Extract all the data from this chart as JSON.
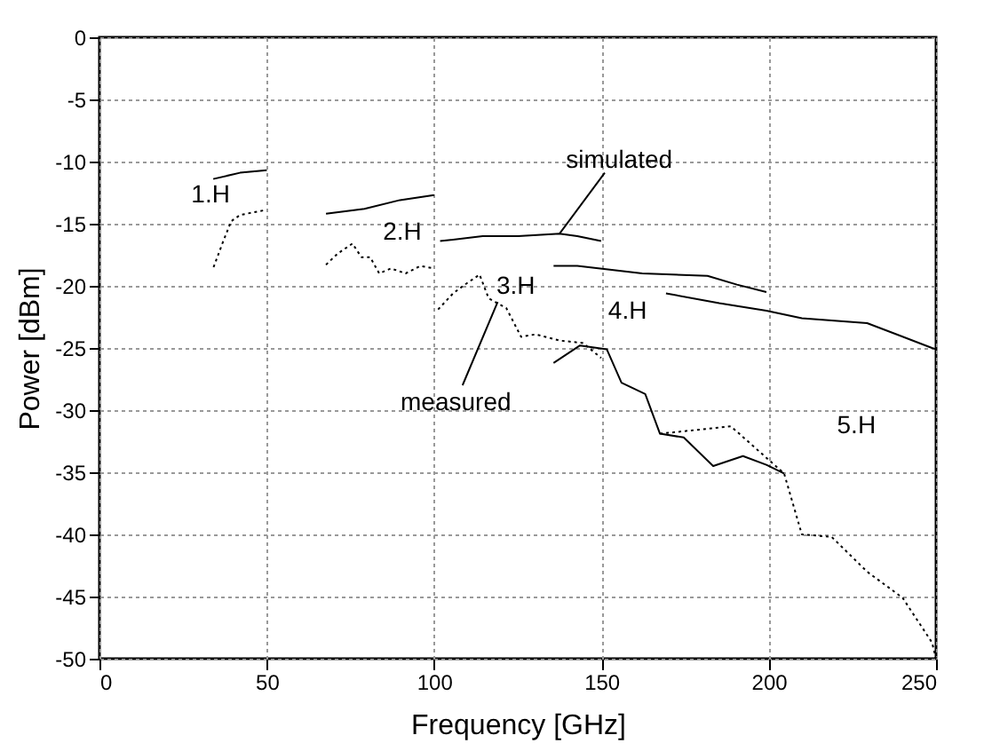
{
  "chart_data": {
    "type": "line",
    "xlabel": "Frequency [GHz]",
    "ylabel": "Power [dBm]",
    "xlim": [
      0,
      250
    ],
    "ylim": [
      -50,
      0
    ],
    "xticks": [
      0,
      50,
      100,
      150,
      200,
      250
    ],
    "yticks": [
      -50,
      -45,
      -40,
      -35,
      -30,
      -25,
      -20,
      -15,
      -10,
      -5,
      0
    ],
    "grid": true,
    "series": [
      {
        "color": "#000000",
        "line_style": "solid",
        "x": [
          34,
          42,
          50
        ],
        "values": [
          -11.4,
          -10.9,
          -10.7
        ]
      },
      {
        "color": "#000000",
        "line_style": "dotted",
        "x": [
          34.1,
          37,
          39.4,
          42,
          49.6
        ],
        "values": [
          -18.5,
          -16.4,
          -14.8,
          -14.3,
          -13.9
        ]
      },
      {
        "color": "#000000",
        "line_style": "solid",
        "x": [
          67.7,
          79.2,
          89.8,
          100
        ],
        "values": [
          -14.2,
          -13.8,
          -13.1,
          -12.7
        ]
      },
      {
        "color": "#000000",
        "line_style": "dotted",
        "x": [
          67.7,
          71.2,
          75.6,
          78.3,
          80.9,
          83.6,
          87.1,
          91.5,
          95.9,
          100
        ],
        "values": [
          -18.3,
          -17.4,
          -16.6,
          -17.7,
          -17.7,
          -19.0,
          -18.6,
          -19.0,
          -18.4,
          -18.6
        ]
      },
      {
        "color": "#000000",
        "line_style": "solid",
        "x": [
          101.8,
          114.5,
          125.1,
          137.5,
          142.8,
          149.9
        ],
        "values": [
          -16.4,
          -16.0,
          -16.0,
          -15.8,
          -16.0,
          -16.4
        ]
      },
      {
        "color": "#000000",
        "line_style": "dotted",
        "x": [
          101.2,
          105.7,
          109.2,
          113.6,
          116.3,
          121.6,
          126,
          130.4,
          137.5,
          144.5,
          149.9
        ],
        "values": [
          -21.9,
          -20.6,
          -19.9,
          -19.1,
          -21.0,
          -21.8,
          -24.1,
          -23.9,
          -24.4,
          -24.6,
          -25.8
        ]
      },
      {
        "color": "#000000",
        "line_style": "solid",
        "x": [
          135.7,
          142.8,
          162.2,
          181.7,
          190.5,
          199.3
        ],
        "values": [
          -18.4,
          -18.4,
          -19.0,
          -19.2,
          -19.9,
          -20.5
        ]
      },
      {
        "color": "#000000",
        "line_style": "solid",
        "x": [
          135.7,
          143.6,
          151.6,
          156,
          163.1,
          167.5,
          174.6,
          183.4,
          192.3,
          199.3,
          204.6
        ],
        "values": [
          -26.2,
          -24.8,
          -25.1,
          -27.8,
          -28.7,
          -31.9,
          -32.2,
          -34.5,
          -33.7,
          -34.4,
          -35.1
        ]
      },
      {
        "color": "#000000",
        "line_style": "solid",
        "x": [
          169.3,
          185.2,
          199.3,
          209.9,
          229.4,
          248.8,
          250
        ],
        "values": [
          -20.6,
          -21.4,
          -22.0,
          -22.6,
          -23.0,
          -25.0,
          -25.1
        ]
      },
      {
        "color": "#000000",
        "line_style": "dotted",
        "x": [
          167.5,
          188.7,
          204.6,
          209.9,
          218.8,
          229.4,
          240,
          248.8,
          250
        ],
        "values": [
          -31.9,
          -31.3,
          -35.1,
          -40.0,
          -40.2,
          -43.0,
          -45.1,
          -48.7,
          -50
        ]
      }
    ],
    "annotations": [
      "1.H",
      "2.H",
      "3.H",
      "4.H",
      "5.H",
      {
        "text": "simulated",
        "x": 137.5,
        "y": -15.8
      },
      {
        "text": "measured",
        "x": 119,
        "y": -21.3
      }
    ]
  }
}
